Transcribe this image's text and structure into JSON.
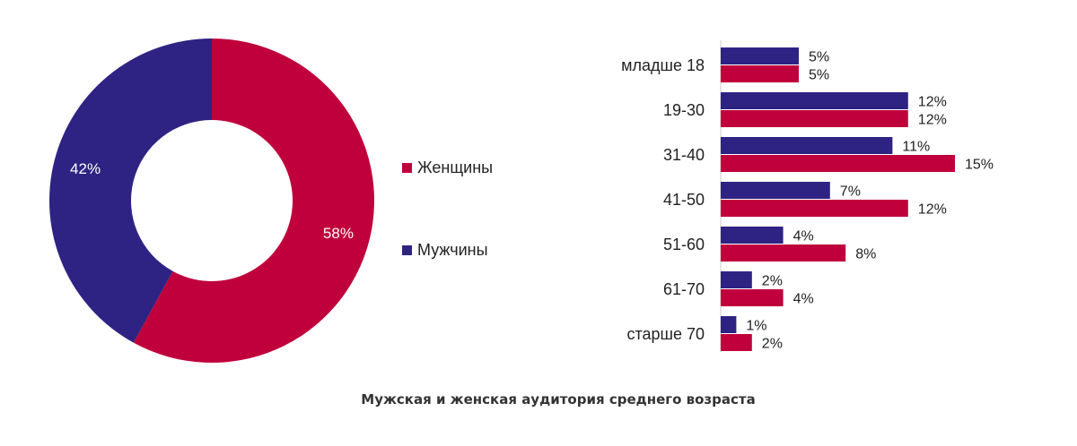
{
  "caption": "Мужская и женская аудитория среднего возраста",
  "colors": {
    "women": "#C0003C",
    "men": "#2E2383"
  },
  "chart_data": [
    {
      "type": "pie",
      "donut": true,
      "slices": [
        {
          "name": "Женщины",
          "value": 58,
          "label": "58%",
          "color": "#C0003C"
        },
        {
          "name": "Мужчины",
          "value": 42,
          "label": "42%",
          "color": "#2E2383"
        }
      ],
      "legend": {
        "placement": "right"
      }
    },
    {
      "type": "bar",
      "orientation": "horizontal",
      "categories": [
        "младше 18",
        "19-30",
        "31-40",
        "41-50",
        "51-60",
        "61-70",
        "старше 70"
      ],
      "series": [
        {
          "name": "Мужчины",
          "color": "#2E2383",
          "values": [
            5,
            12,
            11,
            7,
            4,
            2,
            1
          ],
          "labels": [
            "5%",
            "12%",
            "11%",
            "7%",
            "4%",
            "2%",
            "1%"
          ]
        },
        {
          "name": "Женщины",
          "color": "#C0003C",
          "values": [
            5,
            12,
            15,
            12,
            8,
            4,
            2
          ],
          "labels": [
            "5%",
            "12%",
            "15%",
            "12%",
            "8%",
            "4%",
            "2%"
          ]
        }
      ],
      "xlim": [
        0,
        15
      ],
      "grid": false
    }
  ]
}
